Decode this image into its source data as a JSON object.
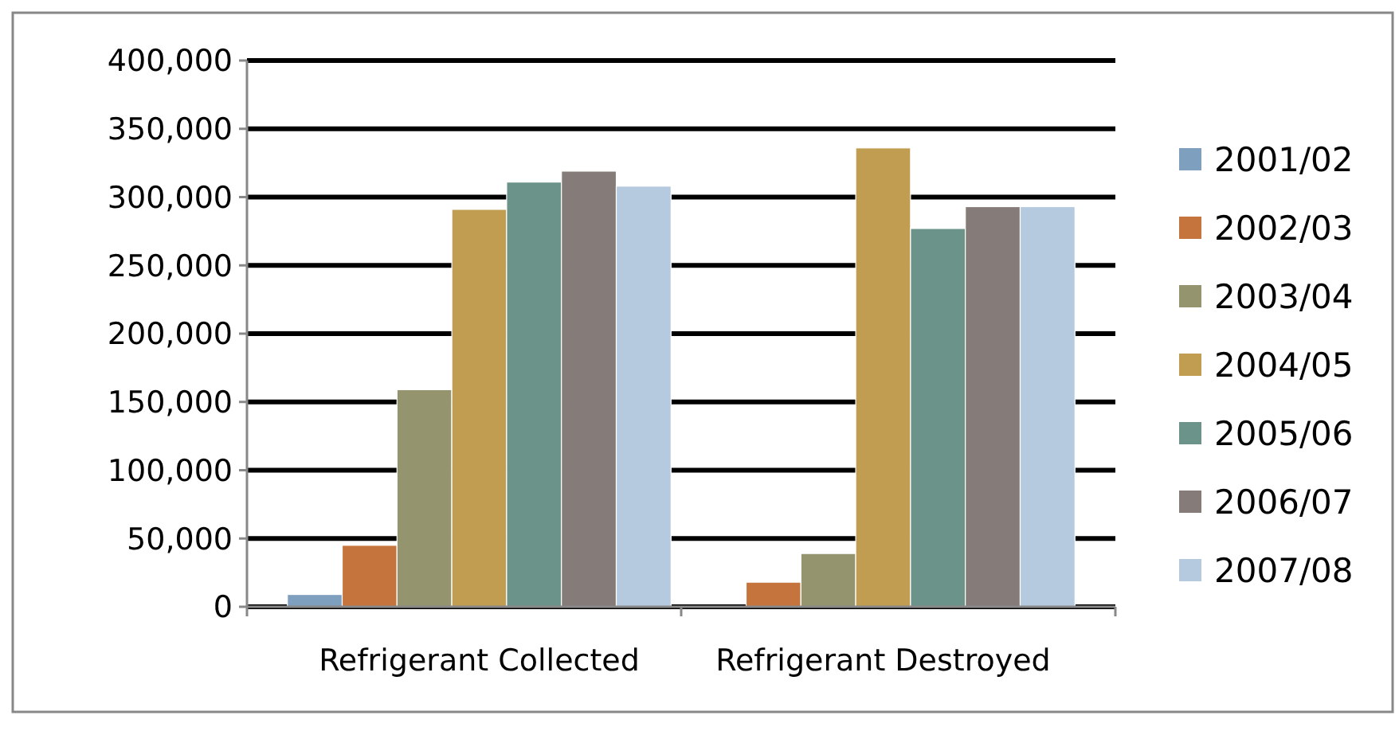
{
  "chart_data": {
    "type": "bar",
    "categories": [
      "Refrigerant Collected",
      "Refrigerant Destroyed"
    ],
    "series": [
      {
        "name": "2001/02",
        "color": "#7f9fbf",
        "values": [
          9000,
          null
        ]
      },
      {
        "name": "2002/03",
        "color": "#c5743e",
        "values": [
          45000,
          18000
        ]
      },
      {
        "name": "2003/04",
        "color": "#94956f",
        "values": [
          159000,
          39000
        ]
      },
      {
        "name": "2004/05",
        "color": "#c09d51",
        "values": [
          291000,
          336000
        ]
      },
      {
        "name": "2005/06",
        "color": "#6c9389",
        "values": [
          311000,
          277000
        ]
      },
      {
        "name": "2006/07",
        "color": "#857b78",
        "values": [
          319000,
          293000
        ]
      },
      {
        "name": "2007/08",
        "color": "#b5cade",
        "values": [
          308000,
          293000
        ]
      }
    ],
    "ylim": [
      0,
      400000
    ],
    "yticks": [
      {
        "value": 0,
        "label": "0"
      },
      {
        "value": 50000,
        "label": "50,000"
      },
      {
        "value": 100000,
        "label": "100,000"
      },
      {
        "value": 150000,
        "label": "150,000"
      },
      {
        "value": 200000,
        "label": "200,000"
      },
      {
        "value": 250000,
        "label": "250,000"
      },
      {
        "value": 300000,
        "label": "300,000"
      },
      {
        "value": 350000,
        "label": "350,000"
      },
      {
        "value": 400000,
        "label": "400,000"
      }
    ],
    "grid": "y",
    "legend": "right"
  }
}
